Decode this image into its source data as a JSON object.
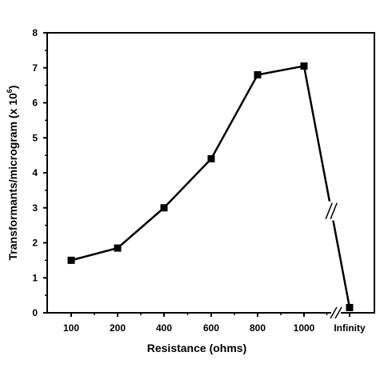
{
  "chart_data": {
    "type": "line",
    "title": "",
    "xlabel": "Resistance (ohms)",
    "ylabel_main": "Transformants/microgram (x 10",
    "ylabel_exp": "6",
    "ylabel_close": ")",
    "categories": [
      "100",
      "200",
      "400",
      "600",
      "800",
      "1000",
      "Infinity"
    ],
    "values": [
      1.5,
      1.85,
      3.0,
      4.4,
      6.8,
      7.05,
      0.15
    ],
    "ylim": [
      0,
      8
    ],
    "yticks": [
      "0",
      "1",
      "2",
      "3",
      "4",
      "5",
      "6",
      "7",
      "8"
    ],
    "axis_break": "between 1000 and Infinity",
    "grid": false,
    "legend": "none",
    "marker": "square",
    "color": "#000000"
  }
}
